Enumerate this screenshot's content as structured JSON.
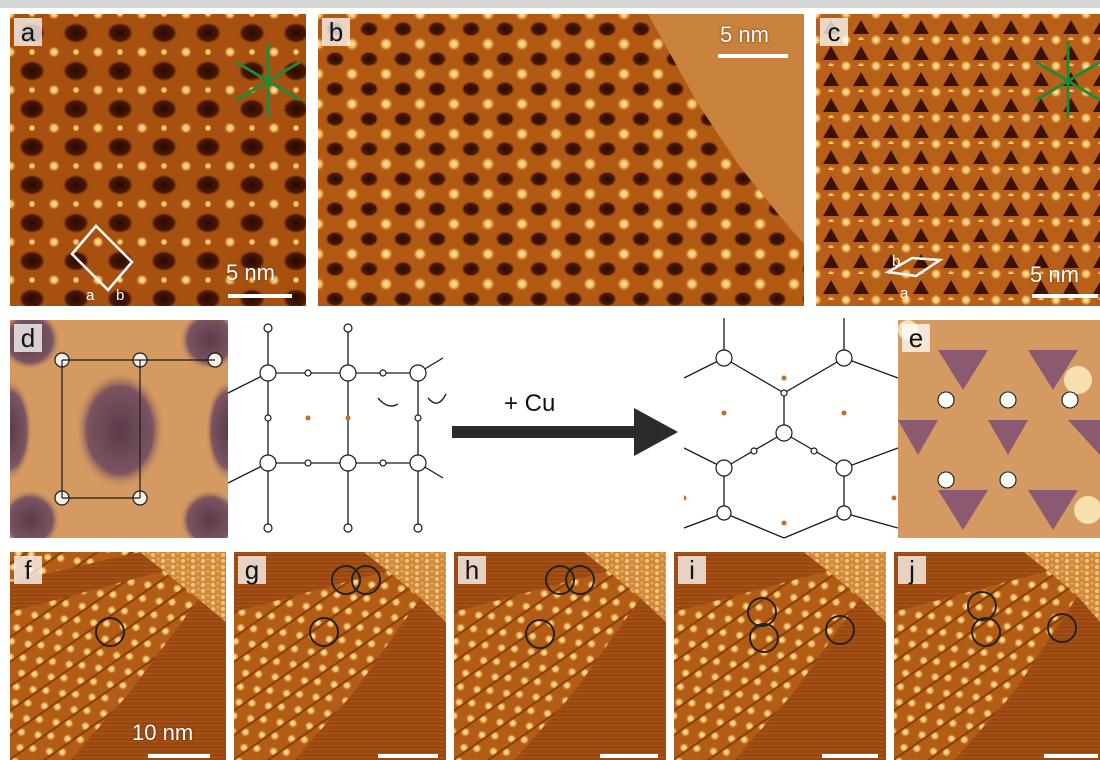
{
  "panels": {
    "a": {
      "label": "a",
      "scale": "5 nm",
      "lattice_a": "a",
      "lattice_b": "b"
    },
    "b": {
      "label": "b",
      "scale": "5 nm"
    },
    "c": {
      "label": "c",
      "scale": "5 nm",
      "lattice_a": "a",
      "lattice_b": "b"
    },
    "d": {
      "label": "d"
    },
    "e": {
      "label": "e"
    },
    "f": {
      "label": "f",
      "scale": "10 nm"
    },
    "g": {
      "label": "g"
    },
    "h": {
      "label": "h"
    },
    "i": {
      "label": "i"
    },
    "j": {
      "label": "j"
    }
  },
  "reaction": {
    "reagent": "+ Cu"
  },
  "colors": {
    "stm_dark": "#3e1304",
    "stm_mid": "#a8500f",
    "stm_bright": "#ffd98a",
    "symmetry_axes": "#1f8a3a",
    "highlight_circle": "#222222",
    "arrow": "#2b2b2b"
  }
}
